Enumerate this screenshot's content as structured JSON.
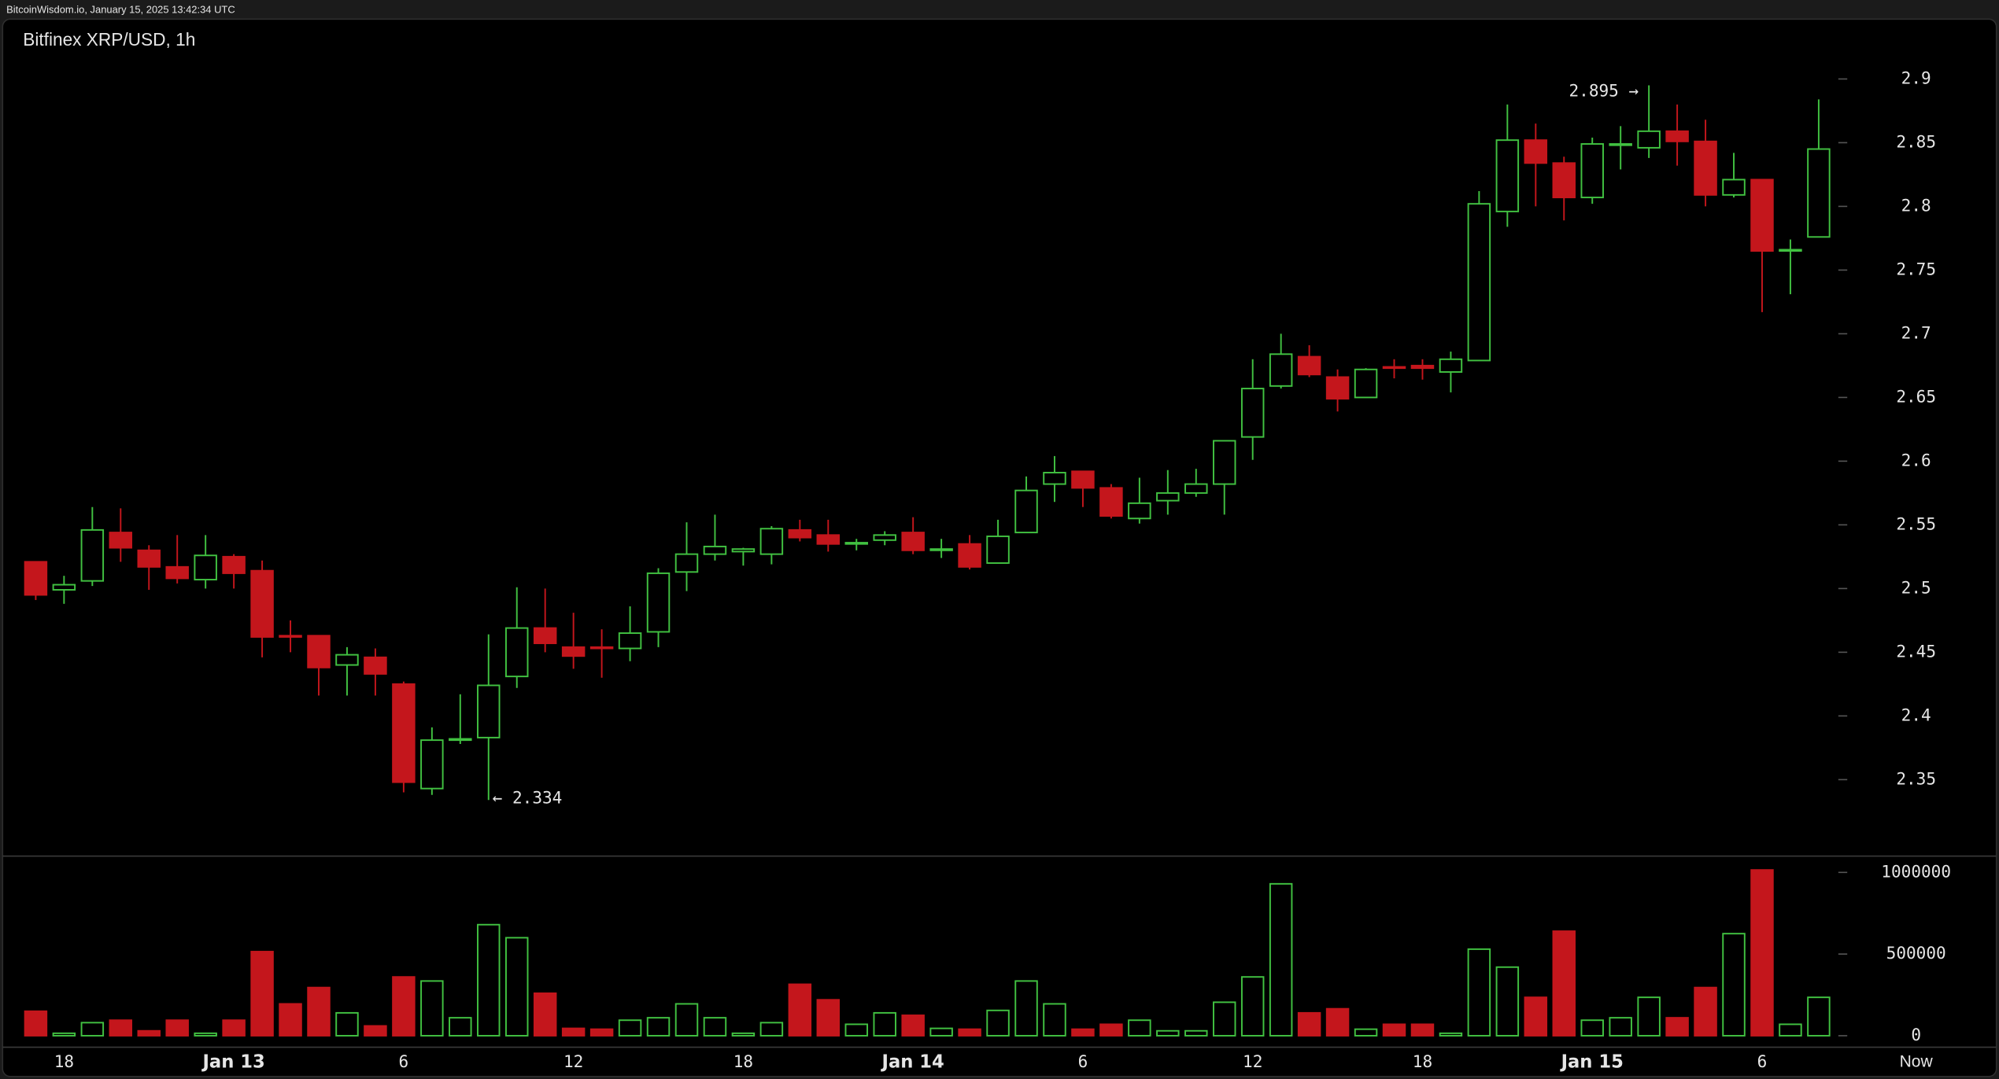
{
  "header": "BitcoinWisdom.io, January 15, 2025 13:42:34 UTC",
  "chart_data": {
    "type": "candlestick",
    "title": "Bitfinex XRP/USD, 1h",
    "up_color": "#41c141",
    "down_color": "#c4161c",
    "categories": [
      null,
      "18",
      null,
      null,
      null,
      null,
      null,
      "Jan 13",
      null,
      null,
      null,
      null,
      null,
      "6",
      null,
      null,
      null,
      null,
      null,
      "12",
      null,
      null,
      null,
      null,
      null,
      "18",
      null,
      null,
      null,
      null,
      null,
      "Jan 14",
      null,
      null,
      null,
      null,
      null,
      "6",
      null,
      null,
      null,
      null,
      null,
      "12",
      null,
      null,
      null,
      null,
      null,
      "18",
      null,
      null,
      null,
      null,
      null,
      "Jan 15",
      null,
      null,
      null,
      null,
      null,
      "6",
      null,
      null
    ],
    "now_label": "Now",
    "open": [
      2.521,
      2.499,
      2.506,
      2.544,
      2.53,
      2.517,
      2.507,
      2.525,
      2.514,
      2.463,
      2.463,
      2.44,
      2.446,
      2.425,
      2.343,
      2.381,
      2.383,
      2.431,
      2.469,
      2.454,
      2.454,
      2.453,
      2.466,
      2.513,
      2.527,
      2.529,
      2.527,
      2.546,
      2.542,
      2.535,
      2.538,
      2.544,
      2.53,
      2.535,
      2.52,
      2.544,
      2.582,
      2.592,
      2.579,
      2.555,
      2.569,
      2.575,
      2.582,
      2.619,
      2.659,
      2.682,
      2.666,
      2.65,
      2.674,
      2.675,
      2.67,
      2.679,
      2.796,
      2.852,
      2.834,
      2.807,
      2.848,
      2.846,
      2.859,
      2.851,
      2.809,
      2.821,
      2.765,
      2.776
    ],
    "high": [
      2.521,
      2.51,
      2.564,
      2.563,
      2.534,
      2.542,
      2.542,
      2.527,
      2.522,
      2.475,
      2.463,
      2.454,
      2.453,
      2.427,
      2.391,
      2.417,
      2.464,
      2.501,
      2.5,
      2.481,
      2.468,
      2.486,
      2.516,
      2.552,
      2.558,
      2.532,
      2.549,
      2.554,
      2.554,
      2.539,
      2.545,
      2.556,
      2.539,
      2.542,
      2.554,
      2.588,
      2.604,
      2.592,
      2.582,
      2.587,
      2.593,
      2.594,
      2.616,
      2.68,
      2.7,
      2.691,
      2.672,
      2.673,
      2.68,
      2.68,
      2.686,
      2.812,
      2.88,
      2.865,
      2.839,
      2.854,
      2.863,
      2.895,
      2.88,
      2.868,
      2.842,
      2.821,
      2.774,
      2.884
    ],
    "low": [
      2.491,
      2.488,
      2.502,
      2.521,
      2.499,
      2.504,
      2.5,
      2.5,
      2.446,
      2.45,
      2.416,
      2.416,
      2.416,
      2.34,
      2.338,
      2.378,
      2.334,
      2.422,
      2.45,
      2.437,
      2.43,
      2.443,
      2.454,
      2.498,
      2.522,
      2.518,
      2.519,
      2.537,
      2.529,
      2.53,
      2.534,
      2.527,
      2.524,
      2.515,
      2.52,
      2.544,
      2.568,
      2.564,
      2.555,
      2.551,
      2.558,
      2.572,
      2.558,
      2.601,
      2.657,
      2.666,
      2.639,
      2.65,
      2.665,
      2.664,
      2.654,
      2.679,
      2.784,
      2.8,
      2.789,
      2.802,
      2.829,
      2.838,
      2.832,
      2.8,
      2.807,
      2.717,
      2.731,
      2.776
    ],
    "close": [
      2.495,
      2.503,
      2.546,
      2.532,
      2.517,
      2.508,
      2.526,
      2.512,
      2.462,
      2.462,
      2.438,
      2.448,
      2.433,
      2.348,
      2.381,
      2.382,
      2.424,
      2.469,
      2.457,
      2.447,
      2.453,
      2.465,
      2.512,
      2.527,
      2.533,
      2.531,
      2.547,
      2.54,
      2.535,
      2.536,
      2.542,
      2.53,
      2.531,
      2.517,
      2.541,
      2.577,
      2.591,
      2.579,
      2.557,
      2.567,
      2.575,
      2.582,
      2.616,
      2.657,
      2.684,
      2.668,
      2.649,
      2.672,
      2.673,
      2.673,
      2.68,
      2.802,
      2.852,
      2.834,
      2.807,
      2.849,
      2.849,
      2.859,
      2.851,
      2.809,
      2.821,
      2.765,
      2.766,
      2.845
    ],
    "ylim": [
      2.29,
      2.947
    ],
    "yticks": [
      2.35,
      2.4,
      2.45,
      2.5,
      2.55,
      2.6,
      2.65,
      2.7,
      2.75,
      2.8,
      2.85,
      2.9
    ],
    "annotations": [
      "2.895 →",
      "← 2.334"
    ],
    "volume": {
      "values": [
        150000,
        15000,
        80000,
        95000,
        30000,
        95000,
        15000,
        95000,
        515000,
        195000,
        295000,
        140000,
        60000,
        360000,
        335000,
        110000,
        680000,
        600000,
        260000,
        45000,
        40000,
        95000,
        110000,
        195000,
        110000,
        15000,
        80000,
        315000,
        220000,
        70000,
        140000,
        125000,
        45000,
        40000,
        155000,
        335000,
        195000,
        40000,
        70000,
        95000,
        30000,
        30000,
        205000,
        360000,
        930000,
        140000,
        165000,
        40000,
        70000,
        70000,
        15000,
        530000,
        420000,
        235000,
        640000,
        95000,
        110000,
        235000,
        110000,
        295000,
        625000,
        1015000,
        70000,
        235000
      ],
      "ylim": [
        -70000,
        1100000
      ],
      "yticks": [
        0,
        500000,
        1000000
      ]
    }
  }
}
